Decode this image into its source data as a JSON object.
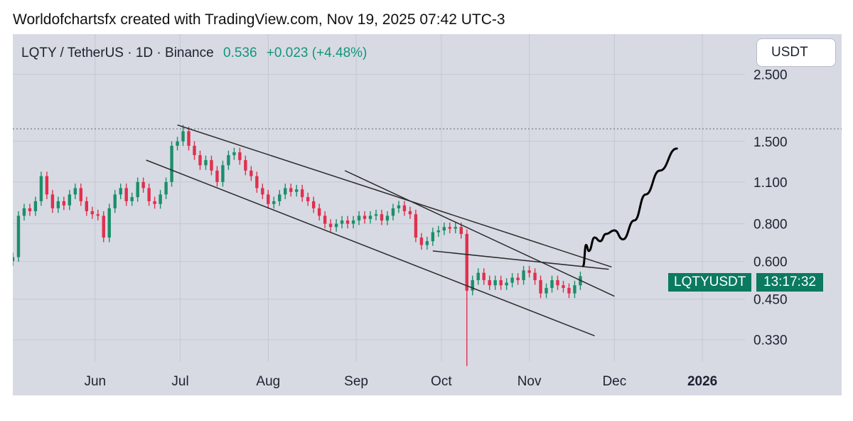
{
  "header": {
    "attribution": "Worldofchartsfx created with TradingView.com, Nov 19, 2025 07:42 UTC-3"
  },
  "toolbar": {
    "currency_label": "USDT"
  },
  "symbol": {
    "name": "LQTY / TetherUS · 1D · Binance",
    "price": "0.536",
    "change": "+0.023 (+4.48%)"
  },
  "price_tag": {
    "ticker": "LQTYUSDT",
    "countdown": "13:17:32"
  },
  "colors": {
    "background": "#d7dae3",
    "up": "#1b8f6a",
    "down": "#e0304e",
    "grid": "#c3c7d2",
    "trendline": "#2b2b2b",
    "accent": "#0b7a60"
  },
  "chart_data": {
    "type": "candlestick",
    "title": "LQTY / TetherUS · 1D · Binance",
    "log_scale": true,
    "grid": true,
    "y_ticks": [
      "2.500",
      "1.500",
      "1.100",
      "0.800",
      "0.600",
      "0.450",
      "0.330"
    ],
    "y_tick_values": [
      2.5,
      1.5,
      1.1,
      0.8,
      0.6,
      0.45,
      0.33
    ],
    "x_ticks": [
      "Jun",
      "Jul",
      "Aug",
      "Sep",
      "Oct",
      "Nov",
      "Dec",
      "2026"
    ],
    "x_tick_dates": [
      "2025-06-01",
      "2025-07-01",
      "2025-08-01",
      "2025-09-01",
      "2025-10-01",
      "2025-11-01",
      "2025-12-01",
      "2026-01-01"
    ],
    "ylim": [
      0.28,
      3.4
    ],
    "xlim": [
      "2025-05-03",
      "2026-01-16"
    ],
    "resistance_level": 1.65,
    "closes": [
      {
        "date": "2025-05-03",
        "close": 0.62
      },
      {
        "date": "2025-05-05",
        "close": 0.85
      },
      {
        "date": "2025-05-07",
        "close": 0.9
      },
      {
        "date": "2025-05-09",
        "close": 0.88
      },
      {
        "date": "2025-05-11",
        "close": 0.95
      },
      {
        "date": "2025-05-13",
        "close": 1.15
      },
      {
        "date": "2025-05-15",
        "close": 1.0
      },
      {
        "date": "2025-05-17",
        "close": 0.9
      },
      {
        "date": "2025-05-19",
        "close": 0.95
      },
      {
        "date": "2025-05-21",
        "close": 0.92
      },
      {
        "date": "2025-05-23",
        "close": 1.0
      },
      {
        "date": "2025-05-25",
        "close": 1.05
      },
      {
        "date": "2025-05-27",
        "close": 0.95
      },
      {
        "date": "2025-05-29",
        "close": 0.88
      },
      {
        "date": "2025-05-31",
        "close": 0.86
      },
      {
        "date": "2025-06-02",
        "close": 0.85
      },
      {
        "date": "2025-06-04",
        "close": 0.72
      },
      {
        "date": "2025-06-06",
        "close": 0.9
      },
      {
        "date": "2025-06-08",
        "close": 1.0
      },
      {
        "date": "2025-06-10",
        "close": 1.05
      },
      {
        "date": "2025-06-12",
        "close": 0.95
      },
      {
        "date": "2025-06-14",
        "close": 0.98
      },
      {
        "date": "2025-06-16",
        "close": 1.1
      },
      {
        "date": "2025-06-18",
        "close": 1.05
      },
      {
        "date": "2025-06-20",
        "close": 0.95
      },
      {
        "date": "2025-06-22",
        "close": 0.93
      },
      {
        "date": "2025-06-24",
        "close": 1.0
      },
      {
        "date": "2025-06-26",
        "close": 1.1
      },
      {
        "date": "2025-06-28",
        "close": 1.45
      },
      {
        "date": "2025-06-30",
        "close": 1.5
      },
      {
        "date": "2025-07-02",
        "close": 1.62
      },
      {
        "date": "2025-07-04",
        "close": 1.45
      },
      {
        "date": "2025-07-06",
        "close": 1.35
      },
      {
        "date": "2025-07-08",
        "close": 1.25
      },
      {
        "date": "2025-07-10",
        "close": 1.3
      },
      {
        "date": "2025-07-12",
        "close": 1.2
      },
      {
        "date": "2025-07-14",
        "close": 1.1
      },
      {
        "date": "2025-07-16",
        "close": 1.25
      },
      {
        "date": "2025-07-18",
        "close": 1.35
      },
      {
        "date": "2025-07-20",
        "close": 1.38
      },
      {
        "date": "2025-07-22",
        "close": 1.3
      },
      {
        "date": "2025-07-24",
        "close": 1.2
      },
      {
        "date": "2025-07-26",
        "close": 1.15
      },
      {
        "date": "2025-07-28",
        "close": 1.05
      },
      {
        "date": "2025-07-30",
        "close": 1.0
      },
      {
        "date": "2025-08-01",
        "close": 0.93
      },
      {
        "date": "2025-08-03",
        "close": 0.95
      },
      {
        "date": "2025-08-05",
        "close": 1.0
      },
      {
        "date": "2025-08-07",
        "close": 1.05
      },
      {
        "date": "2025-08-09",
        "close": 1.02
      },
      {
        "date": "2025-08-11",
        "close": 1.04
      },
      {
        "date": "2025-08-13",
        "close": 0.98
      },
      {
        "date": "2025-08-15",
        "close": 0.95
      },
      {
        "date": "2025-08-17",
        "close": 0.9
      },
      {
        "date": "2025-08-19",
        "close": 0.85
      },
      {
        "date": "2025-08-21",
        "close": 0.8
      },
      {
        "date": "2025-08-23",
        "close": 0.78
      },
      {
        "date": "2025-08-25",
        "close": 0.8
      },
      {
        "date": "2025-08-27",
        "close": 0.82
      },
      {
        "date": "2025-08-29",
        "close": 0.8
      },
      {
        "date": "2025-08-31",
        "close": 0.82
      },
      {
        "date": "2025-09-02",
        "close": 0.85
      },
      {
        "date": "2025-09-04",
        "close": 0.83
      },
      {
        "date": "2025-09-06",
        "close": 0.85
      },
      {
        "date": "2025-09-08",
        "close": 0.86
      },
      {
        "date": "2025-09-10",
        "close": 0.82
      },
      {
        "date": "2025-09-12",
        "close": 0.85
      },
      {
        "date": "2025-09-14",
        "close": 0.9
      },
      {
        "date": "2025-09-16",
        "close": 0.92
      },
      {
        "date": "2025-09-18",
        "close": 0.88
      },
      {
        "date": "2025-09-20",
        "close": 0.86
      },
      {
        "date": "2025-09-22",
        "close": 0.72
      },
      {
        "date": "2025-09-24",
        "close": 0.68
      },
      {
        "date": "2025-09-26",
        "close": 0.7
      },
      {
        "date": "2025-09-28",
        "close": 0.75
      },
      {
        "date": "2025-09-30",
        "close": 0.76
      },
      {
        "date": "2025-10-02",
        "close": 0.78
      },
      {
        "date": "2025-10-04",
        "close": 0.77
      },
      {
        "date": "2025-10-06",
        "close": 0.78
      },
      {
        "date": "2025-10-08",
        "close": 0.74
      },
      {
        "date": "2025-10-10",
        "close": 0.48
      },
      {
        "date": "2025-10-12",
        "close": 0.52
      },
      {
        "date": "2025-10-14",
        "close": 0.55
      },
      {
        "date": "2025-10-16",
        "close": 0.52
      },
      {
        "date": "2025-10-18",
        "close": 0.5
      },
      {
        "date": "2025-10-20",
        "close": 0.52
      },
      {
        "date": "2025-10-22",
        "close": 0.5
      },
      {
        "date": "2025-10-24",
        "close": 0.51
      },
      {
        "date": "2025-10-26",
        "close": 0.53
      },
      {
        "date": "2025-10-28",
        "close": 0.52
      },
      {
        "date": "2025-10-30",
        "close": 0.56
      },
      {
        "date": "2025-11-01",
        "close": 0.55
      },
      {
        "date": "2025-11-03",
        "close": 0.52
      },
      {
        "date": "2025-11-05",
        "close": 0.47
      },
      {
        "date": "2025-11-07",
        "close": 0.49
      },
      {
        "date": "2025-11-09",
        "close": 0.52
      },
      {
        "date": "2025-11-11",
        "close": 0.5
      },
      {
        "date": "2025-11-13",
        "close": 0.49
      },
      {
        "date": "2025-11-15",
        "close": 0.47
      },
      {
        "date": "2025-11-17",
        "close": 0.5
      },
      {
        "date": "2025-11-19",
        "close": 0.536
      }
    ],
    "extremes": [
      {
        "date": "2025-10-10",
        "low": 0.27
      },
      {
        "date": "2025-07-02",
        "high": 1.7
      }
    ],
    "trendlines": [
      {
        "from": {
          "date": "2025-06-30",
          "price": 1.7
        },
        "to": {
          "date": "2025-11-30",
          "price": 0.575
        }
      },
      {
        "from": {
          "date": "2025-06-19",
          "price": 1.3
        },
        "to": {
          "date": "2025-11-24",
          "price": 0.34
        }
      },
      {
        "from": {
          "date": "2025-08-28",
          "price": 1.2
        },
        "to": {
          "date": "2025-12-01",
          "price": 0.46
        }
      },
      {
        "from": {
          "date": "2025-09-28",
          "price": 0.65
        },
        "to": {
          "date": "2025-11-29",
          "price": 0.565
        }
      }
    ],
    "projection": [
      {
        "date": "2025-11-20",
        "price": 0.58
      },
      {
        "date": "2025-11-21",
        "price": 0.68
      },
      {
        "date": "2025-11-22",
        "price": 0.65
      },
      {
        "date": "2025-11-24",
        "price": 0.72
      },
      {
        "date": "2025-11-26",
        "price": 0.7
      },
      {
        "date": "2025-11-28",
        "price": 0.74
      },
      {
        "date": "2025-12-01",
        "price": 0.76
      },
      {
        "date": "2025-12-04",
        "price": 0.71
      },
      {
        "date": "2025-12-08",
        "price": 0.82
      },
      {
        "date": "2025-12-12",
        "price": 1.0
      },
      {
        "date": "2025-12-17",
        "price": 1.2
      },
      {
        "date": "2025-12-23",
        "price": 1.42
      }
    ]
  }
}
